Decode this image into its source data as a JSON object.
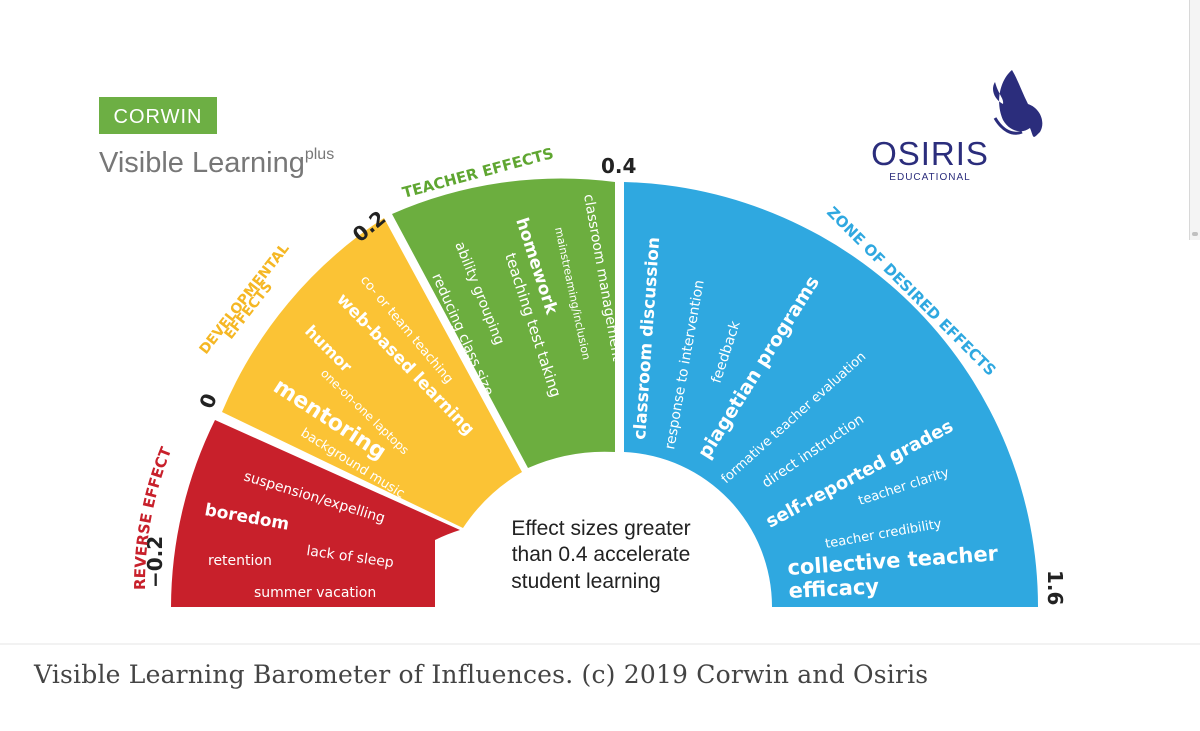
{
  "brand": {
    "corwin": "CORWIN",
    "visible_learning": "Visible Learning",
    "plus": "plus",
    "osiris": "OSIRIS",
    "educational": "EDUCATIONAL"
  },
  "scale_labels": [
    "−0.2",
    "0",
    "0.2",
    "0.4",
    "1.6"
  ],
  "zones": [
    {
      "name": "REVERSE EFFECTS",
      "color": "#C8202B",
      "title_color": "#C8202B",
      "items": [
        "suspension/expelling",
        "boredom",
        "retention",
        "lack of sleep",
        "summer vacation"
      ]
    },
    {
      "name": "DEVELOPMENTAL EFFECTS",
      "title_lines": [
        "DEVELOPMENTAL",
        "EFFECTS"
      ],
      "color": "#FBC335",
      "title_color": "#F5B724",
      "items": [
        "co- or team teaching",
        "web-based learning",
        "humor",
        "one-on-one laptops",
        "mentoring",
        "background music"
      ]
    },
    {
      "name": "TEACHER EFFECTS",
      "color": "#6CAE3F",
      "title_color": "#5FA631",
      "items": [
        "classroom management",
        "mainstreaming/inclusion",
        "homework",
        "teaching test taking",
        "ability grouping",
        "reducing class size"
      ]
    },
    {
      "name": "ZONE OF DESIRED EFFECTS",
      "color": "#2FA8E0",
      "title_color": "#2FA8E0",
      "items": [
        "classroom discussion",
        "response to intervention",
        "feedback",
        "piagetian programs",
        "formative teacher evaluation",
        "direct instruction",
        "self-reported grades",
        "teacher clarity",
        "teacher credibility",
        "collective teacher",
        "efficacy"
      ]
    }
  ],
  "center_text": [
    "Effect sizes greater",
    "than 0.4 accelerate",
    "student learning"
  ],
  "caption": "Visible Learning Barometer of Influences. (c) 2019 Corwin and Osiris",
  "colors": {
    "corwin_green": "#6DAF44",
    "osiris_navy": "#2B2D7C",
    "gray_text": "#777777"
  }
}
